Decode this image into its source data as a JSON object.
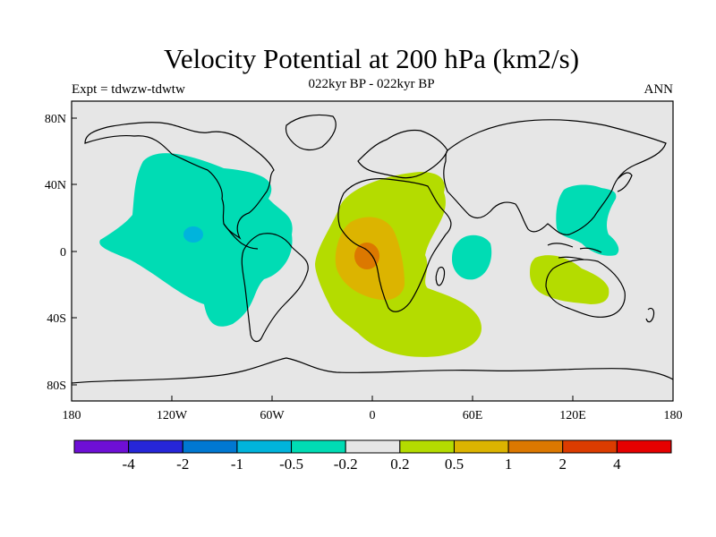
{
  "title": "Velocity Potential at 200 hPa (km2/s)",
  "subtitle": "022kyr BP - 022kyr BP",
  "left_string": "Expt = tdwzw-tdwtw",
  "right_string": "ANN",
  "lon_ticks": [
    "180",
    "120W",
    "60W",
    "0",
    "60E",
    "120E",
    "180"
  ],
  "lat_ticks": [
    "80N",
    "40N",
    "0",
    "40S",
    "80S"
  ],
  "colorbar": {
    "colors": [
      "#6e0fd6",
      "#2626d9",
      "#0078d2",
      "#00b4dc",
      "#00dcb4",
      "#e6e6e6",
      "#b4dc00",
      "#dcb400",
      "#dc7800",
      "#dc3c00",
      "#e60000"
    ],
    "labels": [
      "-4",
      "-2",
      "-1",
      "-0.5",
      "-0.2",
      "0.2",
      "0.5",
      "1",
      "2",
      "4"
    ]
  },
  "colors": {
    "ocean_land_background": "#e6e6e6",
    "negative_light": "#00dcb4",
    "negative_medium": "#00b4dc",
    "positive_light": "#b4dc00",
    "positive_medium": "#dcb400",
    "positive_strong": "#dc7800"
  }
}
